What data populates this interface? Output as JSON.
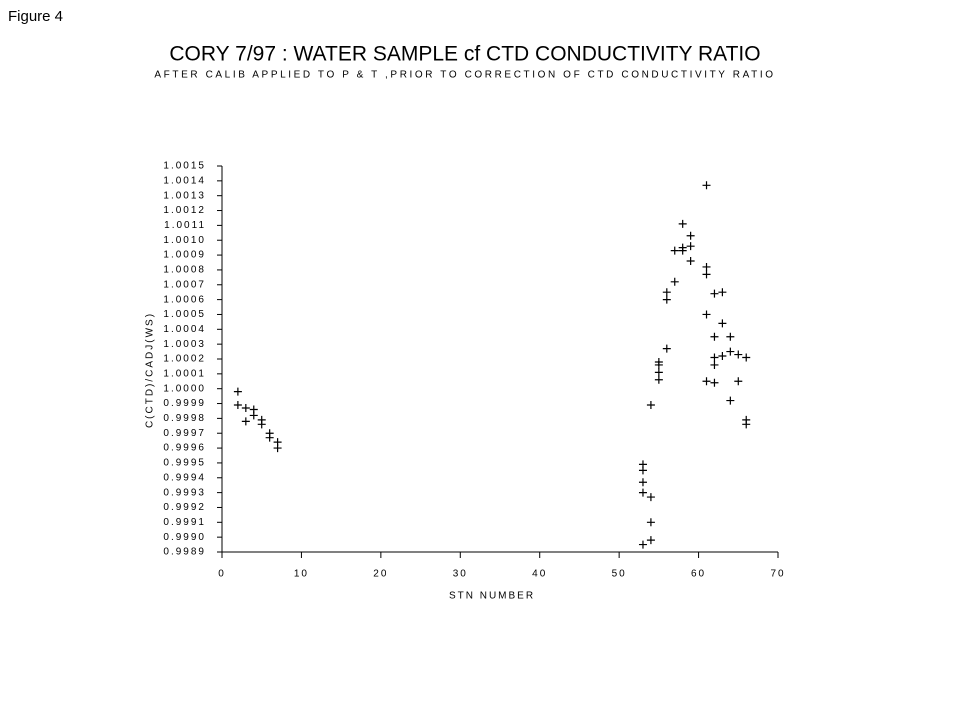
{
  "figure_label": "Figure 4",
  "chart_data": {
    "type": "scatter",
    "title": "CORY 7/97 : WATER SAMPLE cf CTD CONDUCTIVITY RATIO",
    "subtitle": "AFTER CALIB APPLIED TO P & T ,PRIOR TO CORRECTION OF CTD CONDUCTIVITY RATIO",
    "x_label": "STN NUMBER",
    "y_label": "C(CTD)/CADJ(WS)",
    "color": "#000000",
    "x": [
      2,
      2,
      3,
      3,
      4,
      4,
      5,
      5,
      6,
      6,
      7,
      7,
      53,
      53,
      53,
      53,
      53,
      54,
      54,
      54,
      54,
      55,
      55,
      55,
      55,
      56,
      56,
      56,
      57,
      57,
      58,
      58,
      58,
      59,
      59,
      59,
      61,
      61,
      61,
      61,
      61,
      62,
      62,
      62,
      62,
      62,
      63,
      63,
      63,
      64,
      64,
      64,
      65,
      65,
      66,
      66,
      66
    ],
    "values": [
      0.99998,
      0.99989,
      0.99987,
      0.99978,
      0.99986,
      0.99982,
      0.99979,
      0.99976,
      0.9997,
      0.99967,
      0.99964,
      0.9996,
      0.99949,
      0.99945,
      0.99937,
      0.9993,
      0.99895,
      0.99989,
      0.99927,
      0.9991,
      0.99898,
      1.00018,
      1.00016,
      1.00011,
      1.00006,
      1.00065,
      1.0006,
      1.00027,
      1.00093,
      1.00072,
      1.00111,
      1.00095,
      1.00093,
      1.00103,
      1.00096,
      1.00086,
      1.00137,
      1.00082,
      1.00077,
      1.0005,
      1.00005,
      1.00064,
      1.00035,
      1.00021,
      1.00016,
      1.00004,
      1.00065,
      1.00044,
      1.00022,
      1.00035,
      1.00025,
      0.99992,
      1.00023,
      1.00005,
      1.00021,
      0.99979,
      0.99976
    ],
    "xlim": [
      0,
      70
    ],
    "xticks": [
      0,
      10,
      20,
      30,
      40,
      50,
      60,
      70
    ],
    "ylim": [
      0.9989,
      1.0015
    ],
    "yticks": [
      {
        "value": 1.0015,
        "label": "1.0015"
      },
      {
        "value": 1.0014,
        "label": "1.0014"
      },
      {
        "value": 1.0013,
        "label": "1.0013"
      },
      {
        "value": 1.0012,
        "label": "1.0012"
      },
      {
        "value": 1.0011,
        "label": "1.0011"
      },
      {
        "value": 1.001,
        "label": "1.0010"
      },
      {
        "value": 1.0009,
        "label": "1.0009"
      },
      {
        "value": 1.0008,
        "label": "1.0008"
      },
      {
        "value": 1.0007,
        "label": "1.0007"
      },
      {
        "value": 1.0006,
        "label": "1.0006"
      },
      {
        "value": 1.0005,
        "label": "1.0005"
      },
      {
        "value": 1.0004,
        "label": "1.0004"
      },
      {
        "value": 1.0003,
        "label": "1.0003"
      },
      {
        "value": 1.0002,
        "label": "1.0002"
      },
      {
        "value": 1.0001,
        "label": "1.0001"
      },
      {
        "value": 1,
        "label": "1.0000"
      },
      {
        "value": 0.9999,
        "label": "0.9999"
      },
      {
        "value": 0.9998,
        "label": "0.9998"
      },
      {
        "value": 0.9997,
        "label": "0.9997"
      },
      {
        "value": 0.9996,
        "label": "0.9996"
      },
      {
        "value": 0.9995,
        "label": "0.9995"
      },
      {
        "value": 0.9994,
        "label": "0.9994"
      },
      {
        "value": 0.9993,
        "label": "0.9993"
      },
      {
        "value": 0.9992,
        "label": "0.9992"
      },
      {
        "value": 0.9991,
        "label": "0.9991"
      },
      {
        "value": 0.999,
        "label": "0.9990"
      },
      {
        "value": 0.9989,
        "label": "0.9989"
      }
    ]
  }
}
